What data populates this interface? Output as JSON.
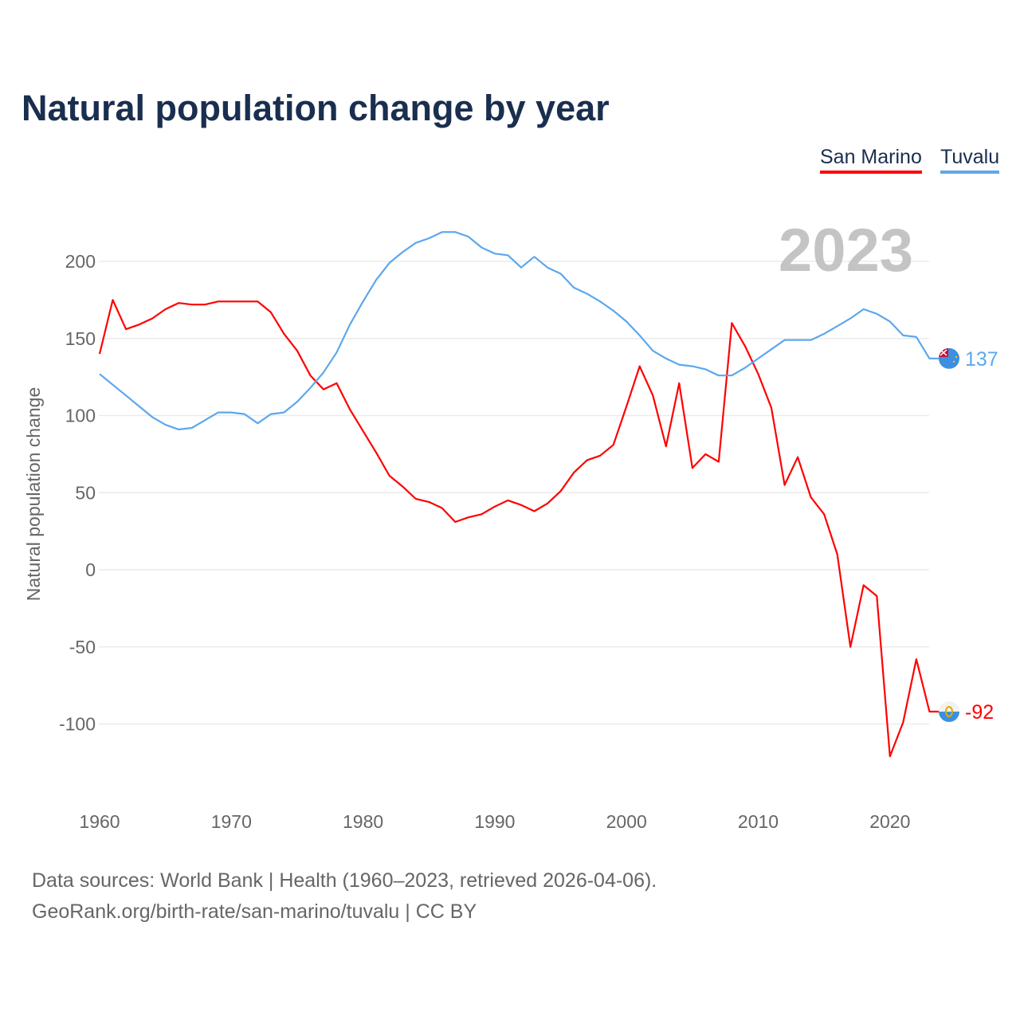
{
  "title": "Natural population change by year",
  "footer": {
    "line1": "Data sources: World Bank | Health (1960–2023, retrieved 2026-04-06).",
    "line2": "GeoRank.org/birth-rate/san-marino/tuvalu | CC BY"
  },
  "chart_data": {
    "type": "line",
    "title": "Natural population change by year",
    "xlabel": "",
    "ylabel": "Natural population change",
    "year_label": "2023",
    "x_ticks": [
      "1960",
      "1970",
      "1980",
      "1990",
      "2000",
      "2010",
      "2020"
    ],
    "y_ticks": [
      "200",
      "150",
      "100",
      "50",
      "0",
      "-50",
      "-100"
    ],
    "ylim": [
      -145,
      230
    ],
    "xlim": [
      1960,
      2023
    ],
    "grid": true,
    "legend": "top-right",
    "x": [
      1960,
      1961,
      1962,
      1963,
      1964,
      1965,
      1966,
      1967,
      1968,
      1969,
      1970,
      1971,
      1972,
      1973,
      1974,
      1975,
      1976,
      1977,
      1978,
      1979,
      1980,
      1981,
      1982,
      1983,
      1984,
      1985,
      1986,
      1987,
      1988,
      1989,
      1990,
      1991,
      1992,
      1993,
      1994,
      1995,
      1996,
      1997,
      1998,
      1999,
      2000,
      2001,
      2002,
      2003,
      2004,
      2005,
      2006,
      2007,
      2008,
      2009,
      2010,
      2011,
      2012,
      2013,
      2014,
      2015,
      2016,
      2017,
      2018,
      2019,
      2020,
      2021,
      2022,
      2023
    ],
    "series": [
      {
        "name": "San Marino",
        "color": "#ff0000",
        "end_label": "-92",
        "flag": "san-marino-flag",
        "values": [
          140,
          175,
          156,
          159,
          163,
          169,
          173,
          172,
          172,
          174,
          174,
          174,
          174,
          167,
          153,
          142,
          126,
          117,
          121,
          104,
          90,
          76,
          61,
          54,
          46,
          44,
          40,
          31,
          34,
          36,
          41,
          45,
          42,
          38,
          43,
          51,
          63,
          71,
          74,
          81,
          106,
          132,
          113,
          80,
          121,
          66,
          75,
          70,
          160,
          145,
          127,
          105,
          55,
          73,
          47,
          36,
          10,
          -50,
          -10,
          -17,
          -121,
          -99,
          -58,
          -92
        ]
      },
      {
        "name": "Tuvalu",
        "color": "#5da7ec",
        "end_label": "137",
        "flag": "tuvalu-flag",
        "values": [
          127,
          120,
          113,
          106,
          99,
          94,
          91,
          92,
          97,
          102,
          102,
          101,
          95,
          101,
          102,
          109,
          118,
          128,
          141,
          159,
          174,
          188,
          199,
          206,
          212,
          215,
          219,
          219,
          216,
          209,
          205,
          204,
          196,
          203,
          196,
          192,
          183,
          179,
          174,
          168,
          161,
          152,
          142,
          137,
          133,
          132,
          130,
          126,
          126,
          131,
          137,
          143,
          149,
          149,
          149,
          153,
          158,
          163,
          169,
          166,
          161,
          152,
          151,
          137
        ]
      }
    ]
  }
}
